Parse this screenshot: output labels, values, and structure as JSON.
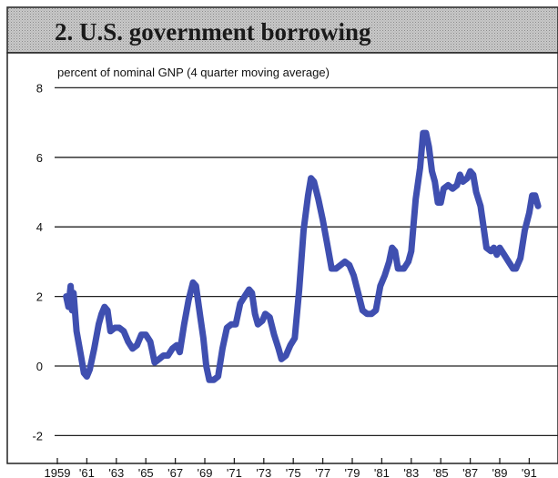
{
  "chart_data": {
    "type": "line",
    "title": "2. U.S. government borrowing",
    "ylabel": "percent of nominal GNP (4 quarter moving average)",
    "xlabel": "",
    "ylim": [
      -2.6,
      8.4
    ],
    "xlim": [
      1959,
      1992.5
    ],
    "yticks": [
      8,
      6,
      4,
      2,
      0,
      -2
    ],
    "xticks": [
      {
        "x": 1959,
        "label": "1959"
      },
      {
        "x": 1961,
        "label": "'61"
      },
      {
        "x": 1963,
        "label": "'63"
      },
      {
        "x": 1965,
        "label": "'65"
      },
      {
        "x": 1967,
        "label": "'67"
      },
      {
        "x": 1969,
        "label": "'69"
      },
      {
        "x": 1971,
        "label": "'71"
      },
      {
        "x": 1973,
        "label": "'73"
      },
      {
        "x": 1975,
        "label": "'75"
      },
      {
        "x": 1977,
        "label": "'77"
      },
      {
        "x": 1979,
        "label": "'79"
      },
      {
        "x": 1981,
        "label": "'81"
      },
      {
        "x": 1983,
        "label": "'83"
      },
      {
        "x": 1985,
        "label": "'85"
      },
      {
        "x": 1987,
        "label": "'87"
      },
      {
        "x": 1989,
        "label": "'89"
      },
      {
        "x": 1991,
        "label": "'91"
      }
    ],
    "grid": "horizontal",
    "series": [
      {
        "color": "#3f4fb0",
        "points": [
          [
            1959.6,
            2.0
          ],
          [
            1959.75,
            1.7
          ],
          [
            1959.9,
            2.3
          ],
          [
            1960.0,
            1.6
          ],
          [
            1960.1,
            2.1
          ],
          [
            1960.3,
            1.0
          ],
          [
            1960.6,
            0.3
          ],
          [
            1960.8,
            -0.2
          ],
          [
            1961.0,
            -0.3
          ],
          [
            1961.2,
            -0.1
          ],
          [
            1961.5,
            0.5
          ],
          [
            1961.8,
            1.2
          ],
          [
            1962.0,
            1.5
          ],
          [
            1962.2,
            1.7
          ],
          [
            1962.4,
            1.6
          ],
          [
            1962.6,
            1.0
          ],
          [
            1962.9,
            1.1
          ],
          [
            1963.2,
            1.1
          ],
          [
            1963.5,
            1.0
          ],
          [
            1963.8,
            0.7
          ],
          [
            1964.1,
            0.5
          ],
          [
            1964.4,
            0.6
          ],
          [
            1964.7,
            0.9
          ],
          [
            1965.0,
            0.9
          ],
          [
            1965.3,
            0.7
          ],
          [
            1965.6,
            0.1
          ],
          [
            1965.9,
            0.2
          ],
          [
            1966.2,
            0.3
          ],
          [
            1966.5,
            0.3
          ],
          [
            1966.8,
            0.5
          ],
          [
            1967.1,
            0.6
          ],
          [
            1967.3,
            0.4
          ],
          [
            1967.6,
            1.2
          ],
          [
            1967.9,
            1.9
          ],
          [
            1968.2,
            2.4
          ],
          [
            1968.4,
            2.3
          ],
          [
            1968.7,
            1.4
          ],
          [
            1968.9,
            0.8
          ],
          [
            1969.1,
            0.0
          ],
          [
            1969.3,
            -0.4
          ],
          [
            1969.6,
            -0.4
          ],
          [
            1969.9,
            -0.3
          ],
          [
            1970.2,
            0.5
          ],
          [
            1970.5,
            1.1
          ],
          [
            1970.8,
            1.2
          ],
          [
            1971.1,
            1.2
          ],
          [
            1971.4,
            1.8
          ],
          [
            1971.7,
            2.0
          ],
          [
            1972.0,
            2.2
          ],
          [
            1972.2,
            2.1
          ],
          [
            1972.4,
            1.5
          ],
          [
            1972.6,
            1.2
          ],
          [
            1972.9,
            1.3
          ],
          [
            1973.1,
            1.5
          ],
          [
            1973.4,
            1.4
          ],
          [
            1973.7,
            0.9
          ],
          [
            1974.0,
            0.5
          ],
          [
            1974.2,
            0.2
          ],
          [
            1974.5,
            0.3
          ],
          [
            1974.8,
            0.6
          ],
          [
            1975.1,
            0.8
          ],
          [
            1975.4,
            2.2
          ],
          [
            1975.7,
            3.9
          ],
          [
            1976.0,
            4.9
          ],
          [
            1976.2,
            5.4
          ],
          [
            1976.4,
            5.3
          ],
          [
            1976.7,
            4.8
          ],
          [
            1977.0,
            4.2
          ],
          [
            1977.3,
            3.5
          ],
          [
            1977.6,
            2.8
          ],
          [
            1977.9,
            2.8
          ],
          [
            1978.2,
            2.9
          ],
          [
            1978.5,
            3.0
          ],
          [
            1978.8,
            2.9
          ],
          [
            1979.1,
            2.6
          ],
          [
            1979.4,
            2.1
          ],
          [
            1979.7,
            1.6
          ],
          [
            1980.0,
            1.5
          ],
          [
            1980.3,
            1.5
          ],
          [
            1980.6,
            1.6
          ],
          [
            1980.9,
            2.3
          ],
          [
            1981.2,
            2.6
          ],
          [
            1981.5,
            3.0
          ],
          [
            1981.7,
            3.4
          ],
          [
            1981.9,
            3.3
          ],
          [
            1982.1,
            2.8
          ],
          [
            1982.3,
            2.8
          ],
          [
            1982.5,
            2.8
          ],
          [
            1982.8,
            3.0
          ],
          [
            1983.0,
            3.3
          ],
          [
            1983.3,
            4.8
          ],
          [
            1983.6,
            5.7
          ],
          [
            1983.8,
            6.7
          ],
          [
            1984.0,
            6.7
          ],
          [
            1984.2,
            6.3
          ],
          [
            1984.4,
            5.6
          ],
          [
            1984.6,
            5.3
          ],
          [
            1984.8,
            4.7
          ],
          [
            1985.0,
            4.7
          ],
          [
            1985.2,
            5.1
          ],
          [
            1985.5,
            5.2
          ],
          [
            1985.8,
            5.1
          ],
          [
            1986.1,
            5.2
          ],
          [
            1986.3,
            5.5
          ],
          [
            1986.5,
            5.3
          ],
          [
            1986.8,
            5.4
          ],
          [
            1987.0,
            5.6
          ],
          [
            1987.2,
            5.5
          ],
          [
            1987.4,
            5.0
          ],
          [
            1987.7,
            4.6
          ],
          [
            1987.9,
            4.0
          ],
          [
            1988.1,
            3.4
          ],
          [
            1988.4,
            3.3
          ],
          [
            1988.6,
            3.4
          ],
          [
            1988.8,
            3.2
          ],
          [
            1989.0,
            3.4
          ],
          [
            1989.3,
            3.2
          ],
          [
            1989.6,
            3.0
          ],
          [
            1989.9,
            2.8
          ],
          [
            1990.1,
            2.8
          ],
          [
            1990.4,
            3.1
          ],
          [
            1990.7,
            3.9
          ],
          [
            1991.0,
            4.4
          ],
          [
            1991.2,
            4.9
          ],
          [
            1991.4,
            4.9
          ],
          [
            1991.6,
            4.6
          ]
        ]
      }
    ]
  }
}
